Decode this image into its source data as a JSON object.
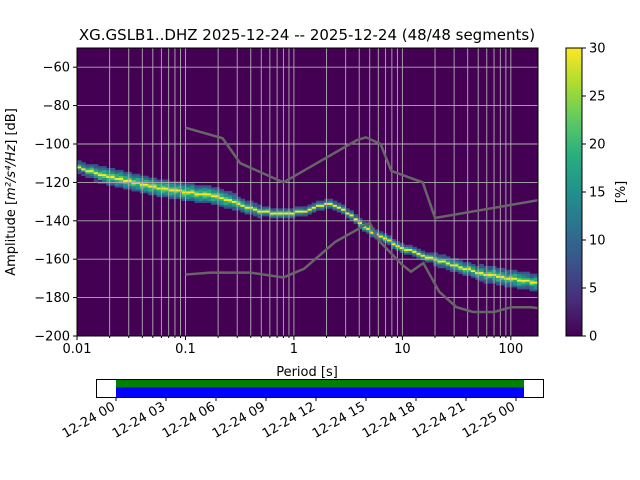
{
  "chart_data": {
    "type": "heatmap",
    "title": "XG.GSLB1..DHZ   2025-12-24 -- 2025-12-24  (48/48 segments)",
    "xlabel": "Period [s]",
    "ylabel_prefix": "Amplitude [",
    "ylabel_math": "m²/s⁴/Hz",
    "ylabel_suffix": "] [dB]",
    "xscale": "log",
    "xlim": [
      0.01,
      178
    ],
    "ylim": [
      -200,
      -50
    ],
    "xticks": [
      0.01,
      0.1,
      1,
      10,
      100
    ],
    "xtick_labels": [
      "0.01",
      "0.1",
      "1",
      "10",
      "100"
    ],
    "yticks": [
      -60,
      -80,
      -100,
      -120,
      -140,
      -160,
      -180,
      -200
    ],
    "ytick_labels": [
      "−60",
      "−80",
      "−100",
      "−120",
      "−140",
      "−160",
      "−180",
      "−200"
    ],
    "grid": true,
    "colorbar": {
      "label": "[%]",
      "range": [
        0,
        30
      ],
      "ticks": [
        0,
        5,
        10,
        15,
        20,
        25,
        30
      ],
      "tick_labels": [
        "0",
        "5",
        "10",
        "15",
        "20",
        "25",
        "30"
      ],
      "colormap": [
        "#440154",
        "#472d7b",
        "#3b528b",
        "#2c728e",
        "#21918c",
        "#28ae80",
        "#5ec962",
        "#addc30",
        "#fde725"
      ]
    },
    "mode_curve": {
      "period": [
        0.01,
        0.02,
        0.03,
        0.05,
        0.1,
        0.2,
        0.3,
        0.5,
        0.8,
        1.2,
        2,
        2.5,
        3.5,
        5,
        10,
        20,
        50,
        100,
        178
      ],
      "db": [
        -112,
        -117,
        -119,
        -122,
        -125,
        -127,
        -131,
        -135,
        -136.5,
        -135,
        -131,
        -132,
        -138,
        -145,
        -154,
        -160,
        -167,
        -170,
        -172
      ],
      "spread_db": [
        1,
        3,
        3,
        3,
        3,
        3,
        2,
        1,
        1,
        0.5,
        0.5,
        0.5,
        0.5,
        1,
        1,
        1,
        2,
        2.5,
        2.5
      ]
    },
    "nhnm": {
      "period": [
        0.1,
        0.22,
        0.32,
        0.8,
        3.8,
        4.6,
        6.3,
        7.9,
        15.4,
        20,
        178
      ],
      "db": [
        -91.5,
        -97,
        -110,
        -120,
        -98,
        -96.5,
        -100,
        -114,
        -120,
        -138.5,
        -129.3
      ]
    },
    "nlnm": {
      "period": [
        0.1,
        0.17,
        0.4,
        0.8,
        1.24,
        2.4,
        4.3,
        5.0,
        6.0,
        10,
        12,
        15.6,
        21.9,
        31.6,
        45,
        70,
        101,
        154,
        178
      ],
      "db": [
        -168,
        -167,
        -167,
        -169.5,
        -165,
        -151,
        -143,
        -141,
        -150,
        -163,
        -166.5,
        -162,
        -177,
        -185,
        -187.5,
        -187.5,
        -185,
        -185,
        -185.5
      ]
    },
    "coverage": {
      "tick_labels": [
        "12-24 00",
        "12-24 03",
        "12-24 06",
        "12-24 09",
        "12-24 12",
        "12-24 15",
        "12-24 18",
        "12-24 21",
        "12-25 00"
      ],
      "data_color": "#0000ff",
      "processed_color": "#008000",
      "coverage_fraction_of_day": 1.02
    }
  }
}
